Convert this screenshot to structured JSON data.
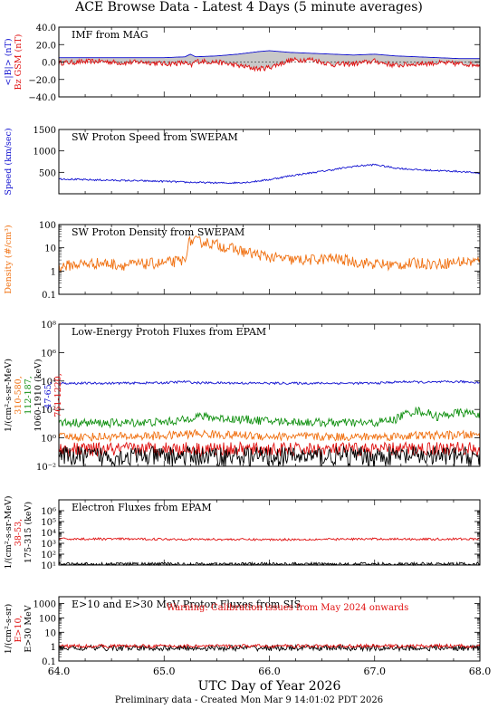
{
  "page": {
    "title": "ACE Browse Data - Latest 4 Days (5 minute averages)",
    "footer": "Preliminary data - Created Mon Mar  9 14:01:02 PDT 2026"
  },
  "colors": {
    "axis": "#000000",
    "blue": "#1010d0",
    "red": "#e01010",
    "orange": "#f07010",
    "green": "#109010",
    "black": "#000000",
    "fill_gray": "#c8c8c8"
  },
  "chart_data": [
    {
      "type": "line",
      "title": "IMF from MAG",
      "ylabel_lines": [
        {
          "text": "<|B|> (nT)",
          "color": "blue"
        },
        {
          "text": "Bz GSM (nT)",
          "color": "red"
        }
      ],
      "ylim": [
        -40,
        40
      ],
      "scale": "linear",
      "yticks": [
        -40,
        -20,
        0,
        20,
        40
      ],
      "ytick_labels": [
        "−40.0",
        "−20.0",
        "0.0",
        "20.0",
        "40.0"
      ],
      "fill_between_series": [
        0,
        1
      ],
      "series": [
        {
          "color": "blue",
          "x": [
            64.0,
            64.2,
            64.4,
            64.6,
            64.8,
            65.0,
            65.2,
            65.25,
            65.3,
            65.5,
            65.7,
            65.9,
            66.0,
            66.2,
            66.4,
            66.6,
            66.8,
            67.0,
            67.2,
            67.4,
            67.6,
            67.8,
            68.0
          ],
          "y": [
            5,
            5,
            5,
            5,
            5,
            5,
            6,
            9,
            6,
            7,
            9,
            12,
            13,
            11,
            10,
            9,
            8,
            9,
            7,
            6,
            5,
            4,
            4
          ]
        },
        {
          "color": "red",
          "x": [
            64.0,
            64.2,
            64.4,
            64.6,
            64.8,
            65.0,
            65.2,
            65.25,
            65.3,
            65.5,
            65.7,
            65.9,
            66.0,
            66.2,
            66.4,
            66.6,
            66.8,
            67.0,
            67.2,
            67.4,
            67.6,
            67.8,
            68.0
          ],
          "y": [
            -1,
            0,
            1,
            -1,
            0,
            -2,
            -1,
            -5,
            1,
            0,
            -4,
            -8,
            -6,
            2,
            3,
            -3,
            -2,
            1,
            -4,
            -2,
            -1,
            -2,
            -3
          ],
          "noise": 3
        }
      ]
    },
    {
      "type": "line",
      "title": "SW Proton Speed from SWEPAM",
      "ylabel_lines": [
        {
          "text": "Speed (km/sec)",
          "color": "blue"
        }
      ],
      "ylim": [
        0,
        1500
      ],
      "scale": "linear",
      "yticks": [
        500,
        1000,
        1500
      ],
      "ytick_labels": [
        "500",
        "1000",
        "1500"
      ],
      "series": [
        {
          "color": "blue",
          "x": [
            64.0,
            64.2,
            64.4,
            64.6,
            64.8,
            65.0,
            65.2,
            65.4,
            65.6,
            65.8,
            66.0,
            66.2,
            66.4,
            66.6,
            66.8,
            67.0,
            67.2,
            67.4,
            67.6,
            67.8,
            67.9,
            68.0
          ],
          "y": [
            350,
            330,
            320,
            310,
            300,
            290,
            270,
            260,
            250,
            270,
            330,
            420,
            490,
            560,
            640,
            680,
            600,
            560,
            540,
            520,
            500,
            480
          ],
          "noise": 20
        }
      ]
    },
    {
      "type": "line",
      "title": "SW Proton Density from SWEPAM",
      "ylabel_lines": [
        {
          "text": "Density (#/cm³)",
          "color": "orange"
        }
      ],
      "ylim": [
        0.1,
        100
      ],
      "scale": "log",
      "yticks": [
        0.1,
        1,
        10,
        100
      ],
      "ytick_labels": [
        "0.1",
        "1",
        "10",
        "100"
      ],
      "series": [
        {
          "color": "orange",
          "x": [
            64.0,
            64.2,
            64.4,
            64.6,
            64.8,
            65.0,
            65.2,
            65.25,
            65.4,
            65.6,
            65.8,
            66.0,
            66.2,
            66.4,
            66.6,
            66.8,
            67.0,
            67.2,
            67.4,
            67.6,
            67.8,
            68.0
          ],
          "y": [
            1.5,
            2.0,
            2.2,
            1.8,
            2.0,
            2.2,
            2.8,
            20,
            17,
            10,
            6,
            4,
            3,
            3,
            3.5,
            2.5,
            2,
            1.8,
            2.2,
            2,
            2.5,
            2.6
          ],
          "noise": 0.12
        }
      ]
    },
    {
      "type": "line",
      "title": "Low-Energy Proton Fluxes from EPAM",
      "ylabel_lines": [
        {
          "text": "1/(cm²-s-sr-MeV)",
          "color": "black"
        },
        {
          "text": "310-580,",
          "color": "orange"
        },
        {
          "text": "112-187,",
          "color": "green"
        },
        {
          "text": "1060-1910 (keV)",
          "color": "black"
        },
        {
          "text": "47-65,",
          "color": "blue"
        },
        {
          "text": "761-1220,",
          "color": "red"
        }
      ],
      "ylim": [
        0.01,
        100000000
      ],
      "scale": "log",
      "yticks": [
        0.01,
        1,
        100,
        10000,
        1000000,
        100000000
      ],
      "ytick_labels": [
        "10⁻²",
        "10⁰",
        "10²",
        "10⁴",
        "10⁶",
        "10⁸"
      ],
      "series": [
        {
          "color": "blue",
          "x": [
            64.0,
            64.5,
            65.0,
            65.2,
            65.3,
            66.0,
            66.5,
            67.0,
            67.3,
            67.5,
            67.8,
            68.0
          ],
          "y": [
            7000,
            7000,
            7500,
            9000,
            7500,
            7000,
            7000,
            7000,
            9000,
            8000,
            9000,
            8000
          ],
          "noise": 0.04
        },
        {
          "color": "green",
          "x": [
            64.0,
            64.5,
            65.0,
            65.2,
            65.3,
            65.5,
            66.0,
            66.5,
            67.0,
            67.2,
            67.4,
            67.6,
            67.8,
            68.0
          ],
          "y": [
            12,
            11,
            13,
            18,
            35,
            25,
            15,
            12,
            11,
            20,
            80,
            30,
            60,
            50
          ],
          "noise": 0.15
        },
        {
          "color": "orange",
          "x": [
            64.0,
            64.5,
            65.0,
            65.3,
            65.6,
            66.0,
            66.5,
            67.0,
            67.5,
            68.0
          ],
          "y": [
            1.2,
            1.2,
            1.4,
            2.0,
            1.6,
            1.3,
            1.2,
            1.2,
            1.5,
            1.6
          ],
          "noise": 0.15
        },
        {
          "color": "red",
          "x": [
            64.0,
            64.5,
            65.0,
            65.5,
            66.0,
            66.5,
            67.0,
            67.5,
            68.0
          ],
          "y": [
            0.15,
            0.15,
            0.18,
            0.16,
            0.15,
            0.15,
            0.15,
            0.18,
            0.17
          ],
          "noise": 0.25
        },
        {
          "color": "black",
          "x": [
            64.0,
            64.5,
            65.0,
            65.5,
            66.0,
            66.5,
            67.0,
            67.5,
            68.0
          ],
          "y": [
            0.05,
            0.05,
            0.05,
            0.05,
            0.05,
            0.05,
            0.05,
            0.05,
            0.05
          ],
          "noise": 0.35
        }
      ]
    },
    {
      "type": "line",
      "title": "Electron Fluxes from EPAM",
      "ylabel_lines": [
        {
          "text": "1/(cm²-s-sr-MeV)",
          "color": "black"
        },
        {
          "text": "38-53,",
          "color": "red"
        },
        {
          "text": "175-315 (keV)",
          "color": "black"
        }
      ],
      "ylim": [
        10,
        10000000
      ],
      "scale": "log",
      "yticks": [
        10,
        100,
        1000,
        10000,
        100000,
        1000000
      ],
      "ytick_labels": [
        "10¹",
        "10²",
        "10³",
        "10⁴",
        "10⁵",
        "10⁶"
      ],
      "series": [
        {
          "color": "red",
          "x": [
            64.0,
            64.5,
            65.0,
            65.5,
            66.0,
            66.5,
            67.0,
            67.5,
            68.0
          ],
          "y": [
            2500,
            2500,
            2400,
            2300,
            2200,
            2300,
            2500,
            2400,
            2500
          ],
          "noise": 0.05
        },
        {
          "color": "black",
          "x": [
            64.0,
            64.5,
            65.0,
            65.5,
            66.0,
            66.5,
            67.0,
            67.5,
            68.0
          ],
          "y": [
            12,
            12,
            12,
            12,
            12,
            12,
            12,
            12,
            12
          ],
          "noise": 0.08
        }
      ]
    },
    {
      "type": "line",
      "title": "E>10 and E>30 MeV Proton Fluxes from SIS",
      "annotation": {
        "text": "Warning: Calibration issues from May 2024 onwards",
        "color": "red"
      },
      "ylabel_lines": [
        {
          "text": "1/(cm²-s-sr)",
          "color": "black"
        },
        {
          "text": "E>10,",
          "color": "red"
        },
        {
          "text": "E>30 MeV",
          "color": "black"
        }
      ],
      "ylim": [
        0.1,
        3000
      ],
      "scale": "log",
      "yticks": [
        0.1,
        1,
        10,
        100,
        1000
      ],
      "ytick_labels": [
        "0.1",
        "1",
        "10",
        "100",
        "1000"
      ],
      "xticks": [
        64.0,
        65.0,
        66.0,
        67.0,
        68.0
      ],
      "xtick_labels": [
        "64.0",
        "65.0",
        "66.0",
        "67.0",
        "68.0"
      ],
      "xlabel": "UTC Day of Year 2026",
      "series": [
        {
          "color": "black",
          "x": [
            64.0,
            64.5,
            65.0,
            65.5,
            66.0,
            66.5,
            67.0,
            67.5,
            68.0
          ],
          "y": [
            0.8,
            0.8,
            0.8,
            0.8,
            0.8,
            0.8,
            0.8,
            0.8,
            0.8
          ],
          "noise": 0.1
        },
        {
          "color": "red",
          "x": [
            64.0,
            64.5,
            65.0,
            65.5,
            66.0,
            66.5,
            67.0,
            67.5,
            68.0
          ],
          "y": [
            1.1,
            1.1,
            1.1,
            1.1,
            1.1,
            1.1,
            1.1,
            1.1,
            1.1
          ],
          "noise": 0.06
        }
      ]
    }
  ]
}
